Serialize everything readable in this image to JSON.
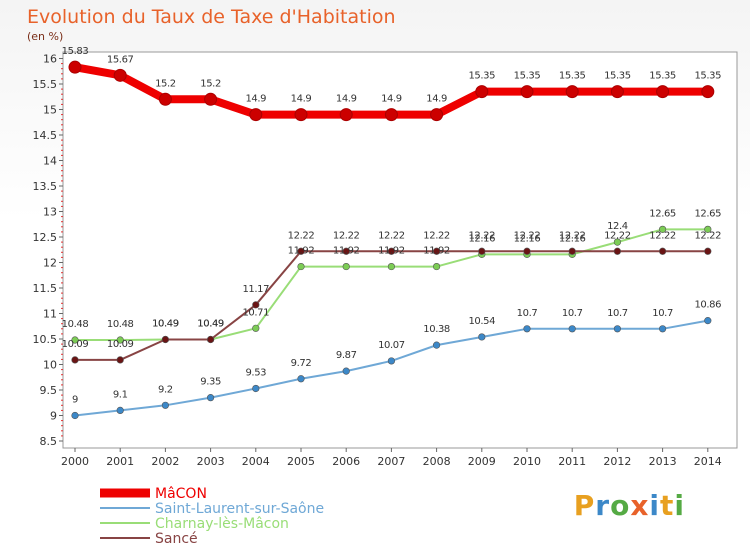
{
  "title": "Evolution du Taux de Taxe d'Habitation",
  "unit_label": "(en %)",
  "logo_text": "Proxiti",
  "chart_data": {
    "type": "line",
    "x": [
      "2000",
      "2001",
      "2002",
      "2003",
      "2004",
      "2005",
      "2006",
      "2007",
      "2008",
      "2009",
      "2010",
      "2011",
      "2012",
      "2013",
      "2014"
    ],
    "ylim": [
      8.5,
      16
    ],
    "yticks": [
      "8.5",
      "9",
      "9.5",
      "10",
      "10.5",
      "11",
      "11.5",
      "12",
      "12.5",
      "13",
      "13.5",
      "14",
      "14.5",
      "15",
      "15.5",
      "16"
    ],
    "grid": false,
    "legend": "bottom-left",
    "series": [
      {
        "name": "MâCON",
        "color": "#ee0000",
        "values": [
          15.83,
          15.67,
          15.2,
          15.2,
          14.9,
          14.9,
          14.9,
          14.9,
          14.9,
          15.35,
          15.35,
          15.35,
          15.35,
          15.35,
          15.35
        ],
        "labels": [
          "15.83",
          "15.67",
          "15.2",
          "15.2",
          "14.9",
          "14.9",
          "14.9",
          "14.9",
          "14.9",
          "15.35",
          "15.35",
          "15.35",
          "15.35",
          "15.35",
          "15.35"
        ]
      },
      {
        "name": "Saint-Laurent-sur-Saône",
        "color": "#6fa8d6",
        "marker": "#3c88c8",
        "values": [
          9,
          9.1,
          9.2,
          9.35,
          9.53,
          9.72,
          9.87,
          10.07,
          10.38,
          10.54,
          10.7,
          10.7,
          10.7,
          10.7,
          10.86
        ],
        "labels": [
          "9",
          "9.1",
          "9.2",
          "9.35",
          "9.53",
          "9.72",
          "9.87",
          "10.07",
          "10.38",
          "10.54",
          "10.7",
          "10.7",
          "10.7",
          "10.7",
          "10.86"
        ]
      },
      {
        "name": "Charnay-lès-Mâcon",
        "color": "#99dd77",
        "marker": "#7ccc55",
        "values": [
          10.48,
          10.48,
          10.49,
          10.49,
          10.71,
          11.92,
          11.92,
          11.92,
          11.92,
          12.16,
          12.16,
          12.16,
          12.4,
          12.65,
          12.65
        ],
        "labels": [
          "10.48",
          "10.48",
          "10.49",
          "10.49",
          "10.71",
          "11.92",
          "11.92",
          "11.92",
          "11.92",
          "12.16",
          "12.16",
          "12.16",
          "12.4",
          "12.65",
          "12.65"
        ]
      },
      {
        "name": "Sancé",
        "color": "#884444",
        "marker": "#6a1414",
        "values": [
          10.09,
          10.09,
          10.49,
          10.49,
          11.17,
          12.22,
          12.22,
          12.22,
          12.22,
          12.22,
          12.22,
          12.22,
          12.22,
          12.22,
          12.22
        ],
        "labels": [
          "10.09",
          "10.09",
          "10.49",
          "10.49",
          "11.17",
          "12.22",
          "12.22",
          "12.22",
          "12.22",
          "12.22",
          "12.22",
          "12.22",
          "12.22",
          "12.22",
          "12.22"
        ]
      }
    ]
  }
}
